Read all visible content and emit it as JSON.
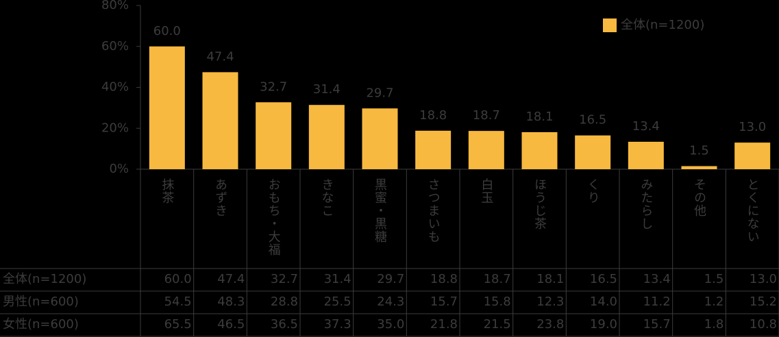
{
  "chart_data": {
    "type": "bar",
    "categories": [
      "抹茶",
      "あずき",
      "おもち・大福",
      "きなこ",
      "黒蜜・黒糖",
      "さつまいも",
      "白玉",
      "ほうじ茶",
      "くり",
      "みたらし",
      "その他",
      "とくにない"
    ],
    "series": [
      {
        "name": "全体(n=1200)",
        "color": "#f8b940",
        "values": [
          60.0,
          47.4,
          32.7,
          31.4,
          29.7,
          18.8,
          18.7,
          18.1,
          16.5,
          13.4,
          1.5,
          13.0
        ],
        "value_labels": [
          "60.0",
          "47.4",
          "32.7",
          "31.4",
          "29.7",
          "18.8",
          "18.7",
          "18.1",
          "16.5",
          "13.4",
          "1.5",
          "13.0"
        ]
      }
    ],
    "ylim": [
      0,
      80
    ],
    "yticks": [
      {
        "value": 0,
        "label": "0%"
      },
      {
        "value": 20,
        "label": "20%"
      },
      {
        "value": 40,
        "label": "40%"
      },
      {
        "value": 60,
        "label": "60%"
      },
      {
        "value": 80,
        "label": "80%"
      }
    ],
    "legend": "top-right"
  },
  "table": {
    "rows": [
      {
        "label": "男性(n=600)",
        "values": [
          "54.5",
          "48.3",
          "28.8",
          "25.5",
          "24.3",
          "15.7",
          "15.8",
          "12.3",
          "14.0",
          "11.2",
          "1.2",
          "15.2"
        ]
      },
      {
        "label": "女性(n=600)",
        "values": [
          "65.5",
          "46.5",
          "36.5",
          "37.3",
          "35.0",
          "21.8",
          "21.5",
          "23.8",
          "19.0",
          "15.7",
          "1.8",
          "10.8"
        ]
      }
    ]
  }
}
